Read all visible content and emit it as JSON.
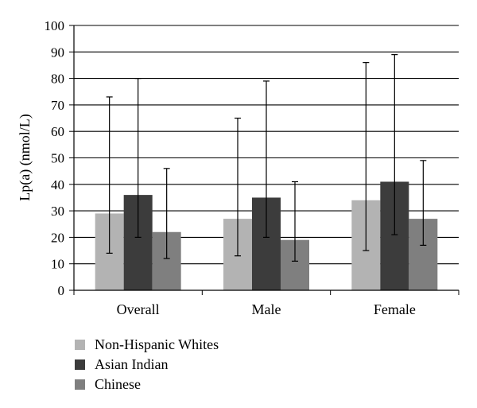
{
  "chart_data": {
    "type": "bar",
    "ylabel": "Lp(a) (nmol/L)",
    "xlabel": "",
    "ylim": [
      0,
      100
    ],
    "yticks": [
      0,
      10,
      20,
      30,
      40,
      50,
      60,
      70,
      80,
      90,
      100
    ],
    "grid": true,
    "legend_position": "bottom-left",
    "categories": [
      "Overall",
      "Male",
      "Female"
    ],
    "series": [
      {
        "name": "Non-Hispanic Whites",
        "color": "#b3b3b3",
        "values": [
          29,
          27,
          34
        ],
        "err_low": [
          14,
          13,
          15
        ],
        "err_high": [
          73,
          65,
          86
        ]
      },
      {
        "name": "Asian Indian",
        "color": "#3c3c3c",
        "values": [
          36,
          35,
          41
        ],
        "err_low": [
          20,
          20,
          21
        ],
        "err_high": [
          80,
          79,
          89
        ]
      },
      {
        "name": "Chinese",
        "color": "#7f7f7f",
        "values": [
          22,
          19,
          27
        ],
        "err_low": [
          12,
          11,
          17
        ],
        "err_high": [
          46,
          41,
          49
        ]
      }
    ]
  }
}
